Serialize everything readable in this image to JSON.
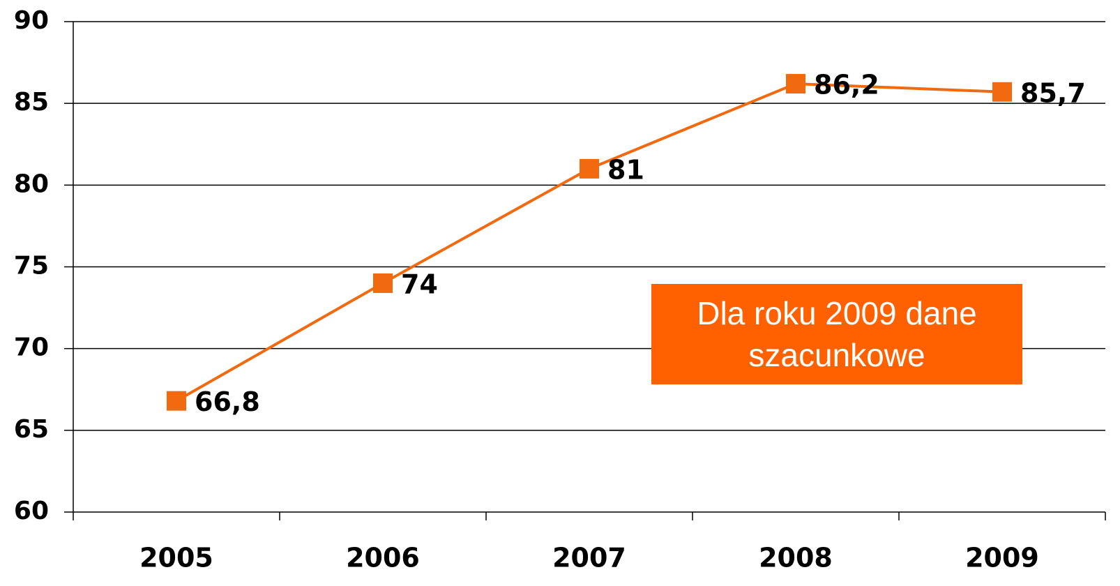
{
  "chart_data": {
    "type": "line",
    "categories": [
      "2005",
      "2006",
      "2007",
      "2008",
      "2009"
    ],
    "series": [
      {
        "color": "#f26a0f",
        "values": [
          66.8,
          74,
          81,
          86.2,
          85.7
        ],
        "value_labels": [
          "66,8",
          "74",
          "81",
          "86,2",
          "85,7"
        ]
      }
    ],
    "ylim": [
      60,
      90
    ],
    "yticks": [
      60,
      65,
      70,
      75,
      80,
      85,
      90
    ],
    "grid": true,
    "annotation": "Dla roku 2009 dane szacunkowe"
  }
}
